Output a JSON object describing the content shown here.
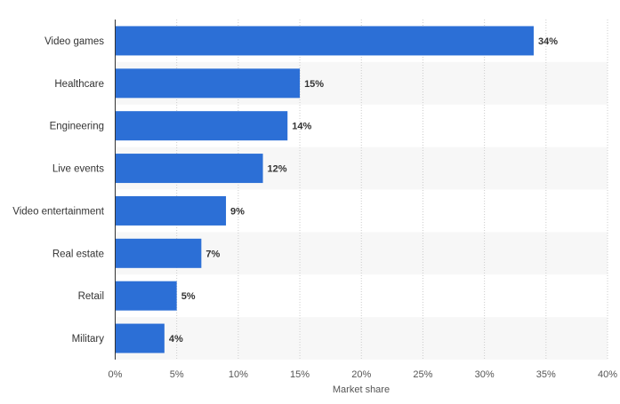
{
  "chart_data": {
    "type": "bar",
    "orientation": "horizontal",
    "categories": [
      "Video games",
      "Healthcare",
      "Engineering",
      "Live events",
      "Video entertainment",
      "Real estate",
      "Retail",
      "Military"
    ],
    "values": [
      34,
      15,
      14,
      12,
      9,
      7,
      5,
      4
    ],
    "value_labels": [
      "34%",
      "15%",
      "14%",
      "12%",
      "9%",
      "7%",
      "5%",
      "4%"
    ],
    "xlabel": "Market share",
    "xlim": [
      0,
      40
    ],
    "x_ticks": [
      "0%",
      "5%",
      "10%",
      "15%",
      "20%",
      "25%",
      "30%",
      "35%",
      "40%"
    ],
    "grid": "vertical dotted",
    "bar_color": "#2c6fd6",
    "band_color": "#f7f7f7"
  }
}
